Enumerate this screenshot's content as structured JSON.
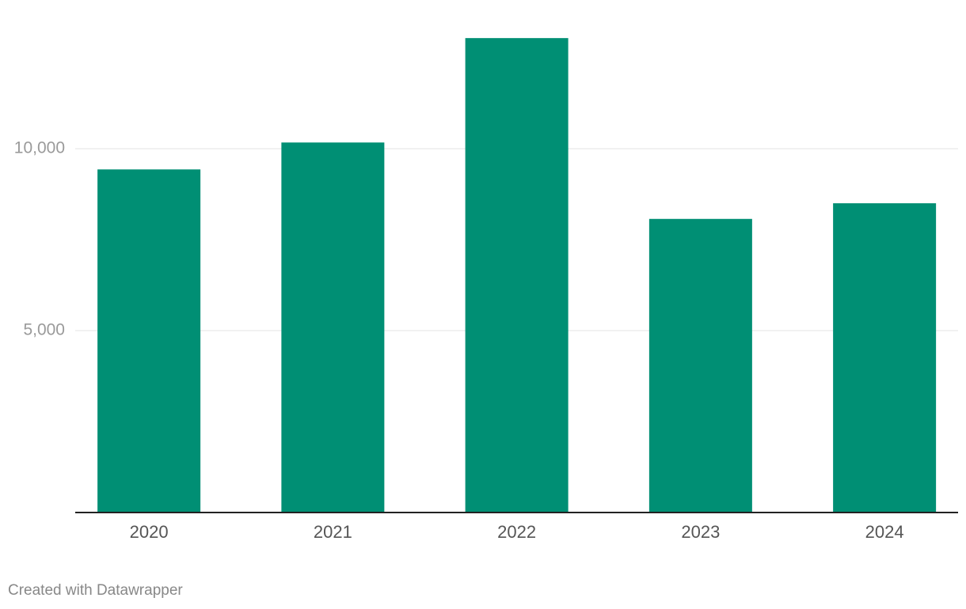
{
  "chart_data": {
    "type": "bar",
    "categories": [
      "2020",
      "2021",
      "2022",
      "2023",
      "2024"
    ],
    "values": [
      9430,
      10170,
      13040,
      8070,
      8500
    ],
    "color": "#008f74",
    "ylim": [
      0,
      14000
    ],
    "yticks": [
      {
        "value": 5000,
        "label": "5,000"
      },
      {
        "value": 10000,
        "label": "10,000"
      }
    ],
    "grid": true,
    "credit": "Created with Datawrapper"
  }
}
